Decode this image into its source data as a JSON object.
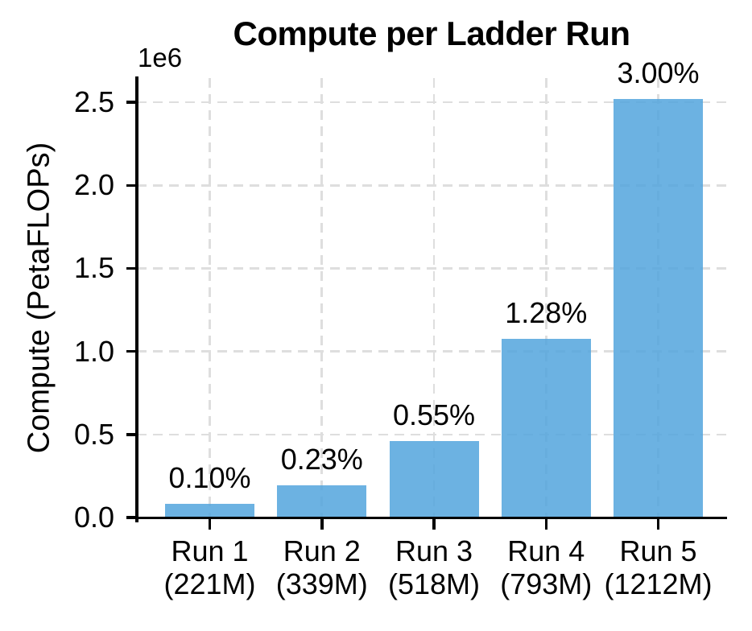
{
  "chart_data": {
    "type": "bar",
    "title": "Compute per Ladder Run",
    "ylabel": "Compute (PetaFLOPs)",
    "xlabel": "",
    "y_offset_text": "1e6",
    "categories": [
      "Run 1",
      "Run 2",
      "Run 3",
      "Run 4",
      "Run 5"
    ],
    "category_sublabels": [
      "(221M)",
      "(339M)",
      "(518M)",
      "(793M)",
      "(1212M)"
    ],
    "values": [
      84000,
      193200,
      462000,
      1075200,
      2520000
    ],
    "bar_labels": [
      "0.10%",
      "0.23%",
      "0.55%",
      "1.28%",
      "3.00%"
    ],
    "y_ticks": [
      {
        "value": 0,
        "label": "0.0"
      },
      {
        "value": 500000,
        "label": "0.5"
      },
      {
        "value": 1000000,
        "label": "1.0"
      },
      {
        "value": 1500000,
        "label": "1.5"
      },
      {
        "value": 2000000,
        "label": "2.0"
      },
      {
        "value": 2500000,
        "label": "2.5"
      }
    ],
    "ylim": [
      0,
      2646000
    ],
    "grid": true,
    "legend_position": "none",
    "colors": {
      "bar": "#6cb2e2",
      "bar_fill_rgba": "rgba(82,165,221,0.85)",
      "grid": "#dedede",
      "axis": "#000000",
      "text": "#000000",
      "background": "#ffffff"
    }
  }
}
